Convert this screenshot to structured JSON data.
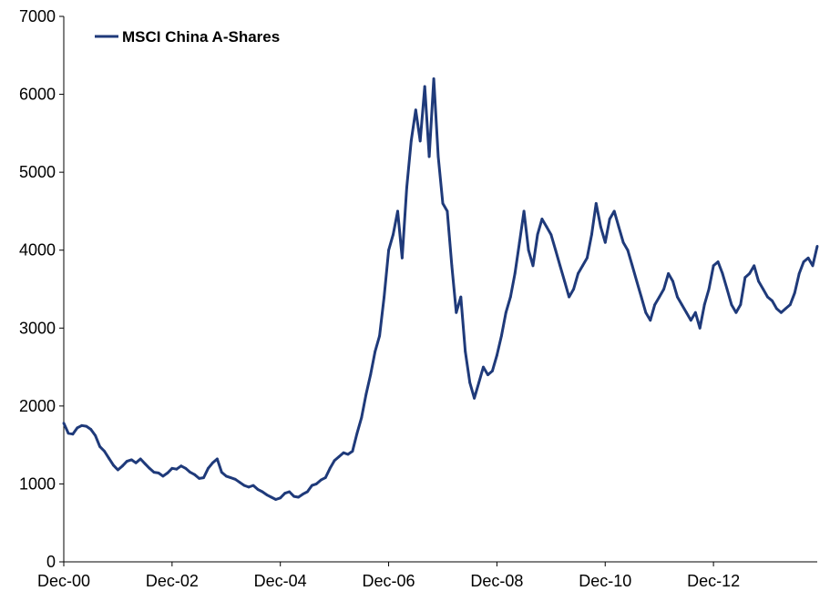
{
  "chart_data": {
    "type": "line",
    "title": "",
    "xlabel": "",
    "ylabel": "",
    "ylim": [
      0,
      7000
    ],
    "xlim": [
      "2000-12",
      "2014-11"
    ],
    "y_ticks": [
      "0",
      "1000",
      "2000",
      "3000",
      "4000",
      "5000",
      "6000",
      "7000"
    ],
    "x_ticks": [
      "Dec-00",
      "Dec-02",
      "Dec-04",
      "Dec-06",
      "Dec-08",
      "Dec-10",
      "Dec-12"
    ],
    "grid": false,
    "legend": "top-left",
    "colors": {
      "line": "#1f3a7a"
    },
    "series": [
      {
        "name": "MSCI China A-Shares",
        "x": [
          "2000-12",
          "2001-01",
          "2001-02",
          "2001-03",
          "2001-04",
          "2001-05",
          "2001-06",
          "2001-07",
          "2001-08",
          "2001-09",
          "2001-10",
          "2001-11",
          "2001-12",
          "2002-01",
          "2002-02",
          "2002-03",
          "2002-04",
          "2002-05",
          "2002-06",
          "2002-07",
          "2002-08",
          "2002-09",
          "2002-10",
          "2002-11",
          "2002-12",
          "2003-01",
          "2003-02",
          "2003-03",
          "2003-04",
          "2003-05",
          "2003-06",
          "2003-07",
          "2003-08",
          "2003-09",
          "2003-10",
          "2003-11",
          "2003-12",
          "2004-01",
          "2004-02",
          "2004-03",
          "2004-04",
          "2004-05",
          "2004-06",
          "2004-07",
          "2004-08",
          "2004-09",
          "2004-10",
          "2004-11",
          "2004-12",
          "2005-01",
          "2005-02",
          "2005-03",
          "2005-04",
          "2005-05",
          "2005-06",
          "2005-07",
          "2005-08",
          "2005-09",
          "2005-10",
          "2005-11",
          "2005-12",
          "2006-01",
          "2006-02",
          "2006-03",
          "2006-04",
          "2006-05",
          "2006-06",
          "2006-07",
          "2006-08",
          "2006-09",
          "2006-10",
          "2006-11",
          "2006-12",
          "2007-01",
          "2007-02",
          "2007-03",
          "2007-04",
          "2007-05",
          "2007-06",
          "2007-07",
          "2007-08",
          "2007-09",
          "2007-10",
          "2007-11",
          "2007-12",
          "2008-01",
          "2008-02",
          "2008-03",
          "2008-04",
          "2008-05",
          "2008-06",
          "2008-07",
          "2008-08",
          "2008-09",
          "2008-10",
          "2008-11",
          "2008-12",
          "2009-01",
          "2009-02",
          "2009-03",
          "2009-04",
          "2009-05",
          "2009-06",
          "2009-07",
          "2009-08",
          "2009-09",
          "2009-10",
          "2009-11",
          "2009-12",
          "2010-01",
          "2010-02",
          "2010-03",
          "2010-04",
          "2010-05",
          "2010-06",
          "2010-07",
          "2010-08",
          "2010-09",
          "2010-10",
          "2010-11",
          "2010-12",
          "2011-01",
          "2011-02",
          "2011-03",
          "2011-04",
          "2011-05",
          "2011-06",
          "2011-07",
          "2011-08",
          "2011-09",
          "2011-10",
          "2011-11",
          "2011-12",
          "2012-01",
          "2012-02",
          "2012-03",
          "2012-04",
          "2012-05",
          "2012-06",
          "2012-07",
          "2012-08",
          "2012-09",
          "2012-10",
          "2012-11",
          "2012-12",
          "2013-01",
          "2013-02",
          "2013-03",
          "2013-04",
          "2013-05",
          "2013-06",
          "2013-07",
          "2013-08",
          "2013-09",
          "2013-10",
          "2013-11",
          "2013-12",
          "2014-01",
          "2014-02",
          "2014-03",
          "2014-04",
          "2014-05",
          "2014-06",
          "2014-07",
          "2014-08",
          "2014-09",
          "2014-10",
          "2014-11"
        ],
        "values": [
          1780,
          1650,
          1640,
          1720,
          1750,
          1740,
          1700,
          1620,
          1480,
          1420,
          1330,
          1240,
          1180,
          1230,
          1290,
          1310,
          1270,
          1320,
          1260,
          1200,
          1150,
          1140,
          1100,
          1140,
          1200,
          1190,
          1230,
          1200,
          1150,
          1120,
          1070,
          1080,
          1200,
          1270,
          1320,
          1150,
          1100,
          1080,
          1060,
          1020,
          980,
          960,
          980,
          930,
          900,
          860,
          830,
          800,
          820,
          880,
          900,
          840,
          830,
          870,
          900,
          980,
          1000,
          1050,
          1080,
          1200,
          1300,
          1350,
          1400,
          1380,
          1420,
          1650,
          1850,
          2150,
          2400,
          2700,
          2900,
          3400,
          4000,
          4200,
          4500,
          3900,
          4800,
          5400,
          5800,
          5400,
          6100,
          5200,
          6200,
          5200,
          4600,
          4500,
          3800,
          3200,
          3400,
          2700,
          2300,
          2100,
          2300,
          2500,
          2400,
          2450,
          2650,
          2900,
          3200,
          3400,
          3700,
          4100,
          4500,
          4000,
          3800,
          4200,
          4400,
          4300,
          4200,
          4000,
          3800,
          3600,
          3400,
          3500,
          3700,
          3800,
          3900,
          4200,
          4600,
          4300,
          4100,
          4400,
          4500,
          4300,
          4100,
          4000,
          3800,
          3600,
          3400,
          3200,
          3100,
          3300,
          3400,
          3500,
          3700,
          3600,
          3400,
          3300,
          3200,
          3100,
          3200,
          3000,
          3300,
          3500,
          3800,
          3850,
          3700,
          3500,
          3300,
          3200,
          3300,
          3650,
          3700,
          3800,
          3600,
          3500,
          3400,
          3350,
          3250,
          3200,
          3250,
          3300,
          3450,
          3700,
          3850,
          3900,
          3800,
          4050
        ]
      }
    ]
  }
}
